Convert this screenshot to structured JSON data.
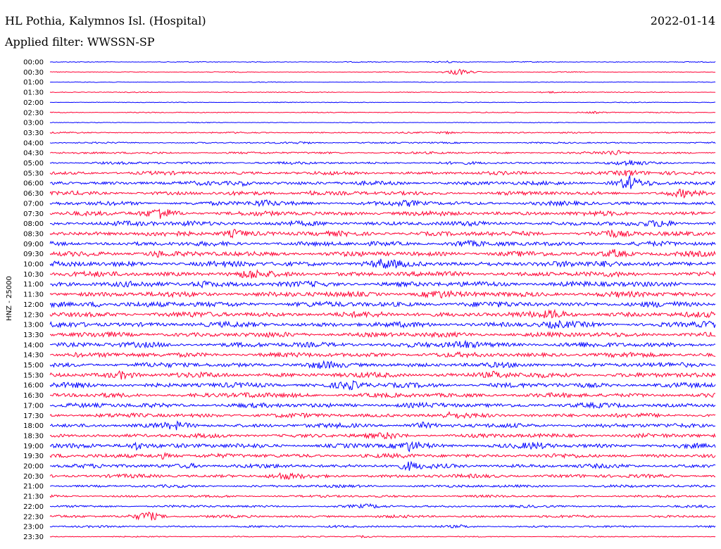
{
  "header": {
    "station": "HL Pothia, Kalymnos Isl. (Hospital)",
    "date": "2022-01-14",
    "filter": "Applied filter: WWSSN-SP"
  },
  "chart_data": {
    "type": "line",
    "title": "HL Pothia, Kalymnos Isl. (Hospital)",
    "subtitle": "Applied filter: WWSSN-SP",
    "date": "2022-01-14",
    "ylabel": "HNZ - 25000",
    "colors": [
      "#0000ff",
      "#ff0033"
    ],
    "rows": [
      {
        "time": "00:00",
        "activity": 0.08,
        "bursts": [
          {
            "at": 0.6,
            "amp": 0.18
          }
        ]
      },
      {
        "time": "00:30",
        "activity": 0.07,
        "bursts": [
          {
            "at": 0.614,
            "amp": 0.75
          }
        ]
      },
      {
        "time": "01:00",
        "activity": 0.06,
        "bursts": []
      },
      {
        "time": "01:30",
        "activity": 0.08,
        "bursts": [
          {
            "at": 0.75,
            "amp": 0.2
          }
        ]
      },
      {
        "time": "02:00",
        "activity": 0.07,
        "bursts": []
      },
      {
        "time": "02:30",
        "activity": 0.09,
        "bursts": [
          {
            "at": 0.82,
            "amp": 0.18
          }
        ]
      },
      {
        "time": "03:00",
        "activity": 0.07,
        "bursts": []
      },
      {
        "time": "03:30",
        "activity": 0.13,
        "bursts": [
          {
            "at": 0.6,
            "amp": 0.25
          }
        ]
      },
      {
        "time": "04:00",
        "activity": 0.14,
        "bursts": [
          {
            "at": 0.38,
            "amp": 0.2
          }
        ]
      },
      {
        "time": "04:30",
        "activity": 0.2,
        "bursts": [
          {
            "at": 0.85,
            "amp": 0.5
          }
        ]
      },
      {
        "time": "05:00",
        "activity": 0.24,
        "bursts": [
          {
            "at": 0.87,
            "amp": 0.45
          }
        ]
      },
      {
        "time": "05:30",
        "activity": 0.32,
        "bursts": [
          {
            "at": 0.87,
            "amp": 0.6
          }
        ]
      },
      {
        "time": "06:00",
        "activity": 0.36,
        "bursts": [
          {
            "at": 0.87,
            "amp": 1.4
          },
          {
            "at": 0.29,
            "amp": 0.4
          }
        ]
      },
      {
        "time": "06:30",
        "activity": 0.36,
        "bursts": [
          {
            "at": 0.95,
            "amp": 0.6
          },
          {
            "at": 0.39,
            "amp": 0.4
          }
        ]
      },
      {
        "time": "07:00",
        "activity": 0.38,
        "bursts": [
          {
            "at": 0.32,
            "amp": 0.55
          },
          {
            "at": 0.54,
            "amp": 0.4
          }
        ]
      },
      {
        "time": "07:30",
        "activity": 0.42,
        "bursts": [
          {
            "at": 0.166,
            "amp": 1.1
          }
        ]
      },
      {
        "time": "08:00",
        "activity": 0.42,
        "bursts": [
          {
            "at": 0.92,
            "amp": 0.6
          },
          {
            "at": 0.21,
            "amp": 0.4
          }
        ]
      },
      {
        "time": "08:30",
        "activity": 0.45,
        "bursts": [
          {
            "at": 0.278,
            "amp": 0.75
          },
          {
            "at": 0.84,
            "amp": 0.55
          }
        ]
      },
      {
        "time": "09:00",
        "activity": 0.42,
        "bursts": [
          {
            "at": 0.62,
            "amp": 0.45
          }
        ]
      },
      {
        "time": "09:30",
        "activity": 0.46,
        "bursts": [
          {
            "at": 0.16,
            "amp": 0.5
          },
          {
            "at": 0.85,
            "amp": 0.65
          }
        ]
      },
      {
        "time": "10:00",
        "activity": 0.5,
        "bursts": [
          {
            "at": 0.5,
            "amp": 0.7
          },
          {
            "at": 0.84,
            "amp": 0.6
          }
        ]
      },
      {
        "time": "10:30",
        "activity": 0.48,
        "bursts": [
          {
            "at": 0.3,
            "amp": 0.7
          }
        ]
      },
      {
        "time": "11:00",
        "activity": 0.5,
        "bursts": [
          {
            "at": 0.23,
            "amp": 0.5
          }
        ]
      },
      {
        "time": "11:30",
        "activity": 0.5,
        "bursts": [
          {
            "at": 0.58,
            "amp": 0.55
          }
        ]
      },
      {
        "time": "12:00",
        "activity": 0.5,
        "bursts": [
          {
            "at": 0.07,
            "amp": 0.45
          }
        ]
      },
      {
        "time": "12:30",
        "activity": 0.5,
        "bursts": [
          {
            "at": 0.76,
            "amp": 0.65
          }
        ]
      },
      {
        "time": "13:00",
        "activity": 0.48,
        "bursts": [
          {
            "at": 0.76,
            "amp": 0.45
          },
          {
            "at": 0.99,
            "amp": 0.5
          }
        ]
      },
      {
        "time": "13:30",
        "activity": 0.46,
        "bursts": []
      },
      {
        "time": "14:00",
        "activity": 0.48,
        "bursts": [
          {
            "at": 0.62,
            "amp": 0.7
          }
        ]
      },
      {
        "time": "14:30",
        "activity": 0.44,
        "bursts": [
          {
            "at": 0.04,
            "amp": 0.35
          }
        ]
      },
      {
        "time": "15:00",
        "activity": 0.44,
        "bursts": [
          {
            "at": 0.41,
            "amp": 0.4
          }
        ]
      },
      {
        "time": "15:30",
        "activity": 0.46,
        "bursts": [
          {
            "at": 0.11,
            "amp": 0.7
          },
          {
            "at": 0.67,
            "amp": 0.6
          }
        ]
      },
      {
        "time": "16:00",
        "activity": 0.46,
        "bursts": [
          {
            "at": 0.45,
            "amp": 0.75
          }
        ]
      },
      {
        "time": "16:30",
        "activity": 0.42,
        "bursts": [
          {
            "at": 0.3,
            "amp": 0.35
          }
        ]
      },
      {
        "time": "17:00",
        "activity": 0.44,
        "bursts": []
      },
      {
        "time": "17:30",
        "activity": 0.4,
        "bursts": [
          {
            "at": 0.6,
            "amp": 0.3
          }
        ]
      },
      {
        "time": "18:00",
        "activity": 0.4,
        "bursts": [
          {
            "at": 0.19,
            "amp": 0.5
          },
          {
            "at": 0.56,
            "amp": 0.4
          }
        ]
      },
      {
        "time": "18:30",
        "activity": 0.38,
        "bursts": [
          {
            "at": 0.51,
            "amp": 0.45
          }
        ]
      },
      {
        "time": "19:00",
        "activity": 0.42,
        "bursts": [
          {
            "at": 0.13,
            "amp": 0.75
          },
          {
            "at": 0.54,
            "amp": 0.85
          },
          {
            "at": 0.73,
            "amp": 0.45
          }
        ]
      },
      {
        "time": "19:30",
        "activity": 0.38,
        "bursts": [
          {
            "at": 0.17,
            "amp": 0.55
          }
        ]
      },
      {
        "time": "20:00",
        "activity": 0.38,
        "bursts": [
          {
            "at": 0.54,
            "amp": 0.7
          },
          {
            "at": 0.21,
            "amp": 0.35
          }
        ]
      },
      {
        "time": "20:30",
        "activity": 0.34,
        "bursts": [
          {
            "at": 0.35,
            "amp": 0.55
          }
        ]
      },
      {
        "time": "21:00",
        "activity": 0.25,
        "bursts": []
      },
      {
        "time": "21:30",
        "activity": 0.22,
        "bursts": []
      },
      {
        "time": "22:00",
        "activity": 0.22,
        "bursts": [
          {
            "at": 0.48,
            "amp": 0.3
          }
        ]
      },
      {
        "time": "22:30",
        "activity": 0.24,
        "bursts": [
          {
            "at": 0.147,
            "amp": 1.1
          }
        ]
      },
      {
        "time": "23:00",
        "activity": 0.18,
        "bursts": [
          {
            "at": 0.43,
            "amp": 0.2
          },
          {
            "at": 0.62,
            "amp": 0.2
          }
        ]
      },
      {
        "time": "23:30",
        "activity": 0.1,
        "bursts": [
          {
            "at": 0.47,
            "amp": 0.2
          }
        ]
      }
    ]
  }
}
